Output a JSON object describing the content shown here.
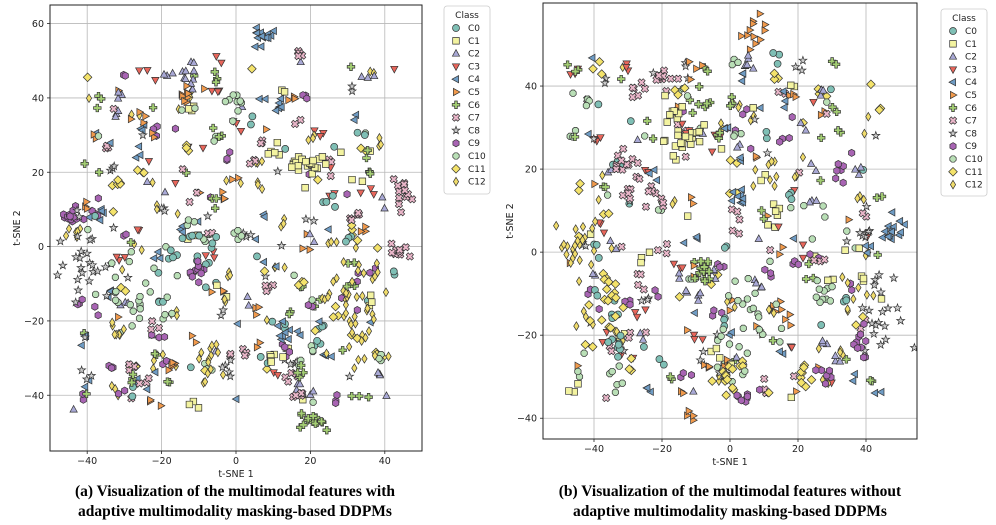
{
  "captions": {
    "a_line1": "(a) Visualization of the multimodal features with",
    "a_line2": "adaptive multimodality masking-based DDPMs",
    "b_line1": "(b) Visualization of the multimodal features without",
    "b_line2": "adaptive multimodality masking-based DDPMs"
  },
  "colors": {
    "C0": "#7fbfb5",
    "C1": "#f3f3a0",
    "C2": "#a9a9d6",
    "C3": "#e8665b",
    "C4": "#6f9cc4",
    "C5": "#f19a4c",
    "C6": "#a3cd73",
    "C7": "#e9b6c9",
    "C8": "#cccccc",
    "C9": "#a864b3",
    "C10": "#b9dfb6",
    "C11": "#f4e36b",
    "C12": "#f0dc6b"
  },
  "chart_data": [
    {
      "type": "scatter",
      "title": "",
      "xlabel": "t-SNE 1",
      "ylabel": "t-SNE 2",
      "xlim": [
        -50,
        50
      ],
      "ylim": [
        -55,
        65
      ],
      "xticks": [
        -40,
        -20,
        0,
        20,
        40
      ],
      "yticks": [
        -40,
        -20,
        0,
        20,
        40,
        60
      ],
      "grid": true,
      "legend_title": "Class",
      "legend": [
        "C0",
        "C1",
        "C2",
        "C3",
        "C4",
        "C5",
        "C6",
        "C7",
        "C8",
        "C9",
        "C10",
        "C11",
        "C12"
      ],
      "clusters": [
        {
          "cls": "C4",
          "x": 8,
          "y": 56,
          "sx": 2,
          "sy": 1.5,
          "n": 14
        },
        {
          "cls": "C7",
          "x": 17,
          "y": 52,
          "sx": 1,
          "sy": 1,
          "n": 5
        },
        {
          "cls": "C2",
          "x": -13,
          "y": 46,
          "sx": 1,
          "sy": 2,
          "n": 10
        },
        {
          "cls": "C5",
          "x": -14,
          "y": 41,
          "sx": 1,
          "sy": 1.5,
          "n": 8
        },
        {
          "cls": "C4",
          "x": 12,
          "y": 38,
          "sx": 1,
          "sy": 1,
          "n": 6
        },
        {
          "cls": "C10",
          "x": 0,
          "y": 38,
          "sx": 1,
          "sy": 2,
          "n": 6
        },
        {
          "cls": "C1",
          "x": 20,
          "y": 22,
          "sx": 3,
          "sy": 2.5,
          "n": 24
        },
        {
          "cls": "C1",
          "x": 10,
          "y": 25,
          "sx": 1,
          "sy": 1,
          "n": 4
        },
        {
          "cls": "C6",
          "x": 36,
          "y": 20,
          "sx": 0.5,
          "sy": 0.5,
          "n": 3
        },
        {
          "cls": "C7",
          "x": 45,
          "y": 14,
          "sx": 1,
          "sy": 2.5,
          "n": 12
        },
        {
          "cls": "C7",
          "x": 32,
          "y": 8,
          "sx": 1,
          "sy": 1,
          "n": 6
        },
        {
          "cls": "C7",
          "x": 44,
          "y": -2,
          "sx": 1.5,
          "sy": 2,
          "n": 10
        },
        {
          "cls": "C9",
          "x": -44,
          "y": 9,
          "sx": 1.5,
          "sy": 2,
          "n": 14
        },
        {
          "cls": "C12",
          "x": -43,
          "y": 3,
          "sx": 1.5,
          "sy": 1.5,
          "n": 6
        },
        {
          "cls": "C8",
          "x": -40,
          "y": -5,
          "sx": 4,
          "sy": 6,
          "n": 28
        },
        {
          "cls": "C10",
          "x": -28,
          "y": -12,
          "sx": 5,
          "sy": 8,
          "n": 28
        },
        {
          "cls": "C12",
          "x": -31,
          "y": -23,
          "sx": 1,
          "sy": 1.5,
          "n": 6
        },
        {
          "cls": "C9",
          "x": -10,
          "y": -7,
          "sx": 1.5,
          "sy": 1.5,
          "n": 10
        },
        {
          "cls": "C12",
          "x": -8,
          "y": -28,
          "sx": 2,
          "sy": 4,
          "n": 14
        },
        {
          "cls": "C1",
          "x": 10,
          "y": -30,
          "sx": 1.5,
          "sy": 1.5,
          "n": 6
        },
        {
          "cls": "C4",
          "x": 13,
          "y": -23,
          "sx": 2,
          "sy": 2,
          "n": 10
        },
        {
          "cls": "C12",
          "x": 32,
          "y": -15,
          "sx": 5,
          "sy": 7,
          "n": 40
        },
        {
          "cls": "C6",
          "x": 19,
          "y": -48,
          "sx": 3,
          "sy": 1.5,
          "n": 14
        },
        {
          "cls": "C7",
          "x": 18,
          "y": -40,
          "sx": 2,
          "sy": 1,
          "n": 5
        },
        {
          "cls": "C5",
          "x": -17,
          "y": -32,
          "sx": 1,
          "sy": 1,
          "n": 5
        },
        {
          "cls": "C5",
          "x": -22,
          "y": 30,
          "sx": 0.5,
          "sy": 0.5,
          "n": 2
        },
        {
          "cls": "C0",
          "x": -17,
          "y": -3,
          "sx": 1,
          "sy": 1,
          "n": 4
        }
      ],
      "scatter_seed": 7,
      "scatter_n": 280
    },
    {
      "type": "scatter",
      "title": "",
      "xlabel": "t-SNE 1",
      "ylabel": "t-SNE 2",
      "xlim": [
        -55,
        55
      ],
      "ylim": [
        -45,
        60
      ],
      "xticks": [
        -40,
        -20,
        0,
        20,
        40
      ],
      "yticks": [
        -40,
        -20,
        0,
        20,
        40
      ],
      "grid": true,
      "legend_title": "Class",
      "legend": [
        "C0",
        "C1",
        "C2",
        "C3",
        "C4",
        "C5",
        "C6",
        "C7",
        "C8",
        "C9",
        "C10",
        "C11",
        "C12"
      ],
      "clusters": [
        {
          "cls": "C5",
          "x": 8,
          "y": 52,
          "sx": 1.5,
          "sy": 2.5,
          "n": 12
        },
        {
          "cls": "C2",
          "x": 5,
          "y": 46,
          "sx": 1,
          "sy": 1.5,
          "n": 6
        },
        {
          "cls": "C7",
          "x": -20,
          "y": 42,
          "sx": 2,
          "sy": 1.5,
          "n": 10
        },
        {
          "cls": "C1",
          "x": -14,
          "y": 30,
          "sx": 4,
          "sy": 3,
          "n": 26
        },
        {
          "cls": "C7",
          "x": -30,
          "y": 22,
          "sx": 3,
          "sy": 2,
          "n": 12
        },
        {
          "cls": "C7",
          "x": -25,
          "y": 14,
          "sx": 3,
          "sy": 2,
          "n": 12
        },
        {
          "cls": "C4",
          "x": 3,
          "y": 12,
          "sx": 1.5,
          "sy": 1.5,
          "n": 8
        },
        {
          "cls": "C12",
          "x": -46,
          "y": 2,
          "sx": 4,
          "sy": 4,
          "n": 24
        },
        {
          "cls": "C11",
          "x": -35,
          "y": -10,
          "sx": 2,
          "sy": 4,
          "n": 16
        },
        {
          "cls": "C12",
          "x": -33,
          "y": -21,
          "sx": 1,
          "sy": 2,
          "n": 6
        },
        {
          "cls": "C0",
          "x": -33,
          "y": -23,
          "sx": 1.5,
          "sy": 1.5,
          "n": 8
        },
        {
          "cls": "C6",
          "x": -7,
          "y": -5,
          "sx": 1.5,
          "sy": 3,
          "n": 14
        },
        {
          "cls": "C10",
          "x": 8,
          "y": -15,
          "sx": 5,
          "sy": 6,
          "n": 22
        },
        {
          "cls": "C10",
          "x": 27,
          "y": -9,
          "sx": 2,
          "sy": 2,
          "n": 10
        },
        {
          "cls": "C4",
          "x": 48,
          "y": 5,
          "sx": 2,
          "sy": 2,
          "n": 14
        },
        {
          "cls": "C8",
          "x": 45,
          "y": -15,
          "sx": 4,
          "sy": 5,
          "n": 20
        },
        {
          "cls": "C9",
          "x": 38,
          "y": -23,
          "sx": 2,
          "sy": 2,
          "n": 10
        },
        {
          "cls": "C9",
          "x": 28,
          "y": -28,
          "sx": 2,
          "sy": 1.5,
          "n": 8
        },
        {
          "cls": "C9",
          "x": 5,
          "y": -35,
          "sx": 2,
          "sy": 1,
          "n": 8
        },
        {
          "cls": "C11",
          "x": -1,
          "y": -30,
          "sx": 3,
          "sy": 3,
          "n": 12
        },
        {
          "cls": "C5",
          "x": -12,
          "y": -39,
          "sx": 1,
          "sy": 1,
          "n": 4
        },
        {
          "cls": "C11",
          "x": 22,
          "y": -30,
          "sx": 2,
          "sy": 2,
          "n": 6
        },
        {
          "cls": "C12",
          "x": 36,
          "y": -10,
          "sx": 1.5,
          "sy": 2,
          "n": 6
        }
      ],
      "scatter_seed": 13,
      "scatter_n": 300
    }
  ]
}
